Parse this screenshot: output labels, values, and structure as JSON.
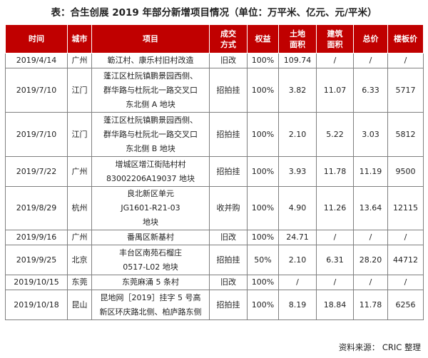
{
  "title": "表：合生创展 2019 年部分新增项目情况（单位：万平米、亿元、元/平米）",
  "columns": [
    {
      "key": "date",
      "label": "时间"
    },
    {
      "key": "city",
      "label": "城市"
    },
    {
      "key": "project",
      "label": "项目"
    },
    {
      "key": "method",
      "label": "成交方式"
    },
    {
      "key": "equity",
      "label": "权益"
    },
    {
      "key": "land_area",
      "label": "土地面积"
    },
    {
      "key": "build_area",
      "label": "建筑面积"
    },
    {
      "key": "total_price",
      "label": "总价"
    },
    {
      "key": "floor_price",
      "label": "楼板价"
    }
  ],
  "rows": [
    {
      "date": "2019/4/14",
      "city": "广州",
      "project": "簕江村、康乐村旧村改造",
      "method": "旧改",
      "equity": "100%",
      "land_area": "109.74",
      "build_area": "/",
      "total_price": "/",
      "floor_price": "/"
    },
    {
      "date": "2019/7/10",
      "city": "江门",
      "project": "蓬江区杜阮镇鹏景园西侧、群华路与杜阮北一路交叉口东北侧 A 地块",
      "method": "招拍挂",
      "equity": "100%",
      "land_area": "3.82",
      "build_area": "11.07",
      "total_price": "6.33",
      "floor_price": "5717"
    },
    {
      "date": "2019/7/10",
      "city": "江门",
      "project": "蓬江区杜阮镇鹏景园西侧、群华路与杜阮北一路交叉口东北侧 B 地块",
      "method": "招拍挂",
      "equity": "100%",
      "land_area": "2.10",
      "build_area": "5.22",
      "total_price": "3.03",
      "floor_price": "5812"
    },
    {
      "date": "2019/7/22",
      "city": "广州",
      "project": "增城区增江街陆村村 83002206A19037 地块",
      "method": "招拍挂",
      "equity": "100%",
      "land_area": "3.93",
      "build_area": "11.78",
      "total_price": "11.19",
      "floor_price": "9500"
    },
    {
      "date": "2019/8/29",
      "city": "杭州",
      "project": "良北新区单元 JG1601-R21-03 地块",
      "method": "收并购",
      "equity": "100%",
      "land_area": "4.90",
      "build_area": "11.26",
      "total_price": "13.64",
      "floor_price": "12115"
    },
    {
      "date": "2019/9/16",
      "city": "广州",
      "project": "番禺区新基村",
      "method": "旧改",
      "equity": "100%",
      "land_area": "24.71",
      "build_area": "/",
      "total_price": "/",
      "floor_price": "/"
    },
    {
      "date": "2019/9/25",
      "city": "北京",
      "project": "丰台区南苑石榴庄 0517-L02 地块",
      "method": "招拍挂",
      "equity": "50%",
      "land_area": "2.10",
      "build_area": "6.31",
      "total_price": "28.20",
      "floor_price": "44712"
    },
    {
      "date": "2019/10/15",
      "city": "东莞",
      "project": "东莞麻涌 5 条村",
      "method": "旧改",
      "equity": "100%",
      "land_area": "/",
      "build_area": "/",
      "total_price": "/",
      "floor_price": "/"
    },
    {
      "date": "2019/10/18",
      "city": "昆山",
      "project": "昆地网［2019］挂字 5 号高新区环庆路北侧、柏庐路东侧",
      "method": "招拍挂",
      "equity": "100%",
      "land_area": "8.19",
      "build_area": "18.84",
      "total_price": "11.78",
      "floor_price": "6256"
    }
  ],
  "colors": {
    "header_bg": "#c00000",
    "header_text": "#ffffff",
    "border": "#7f7f7f"
  },
  "source": "资料来源： CRIC 整理"
}
